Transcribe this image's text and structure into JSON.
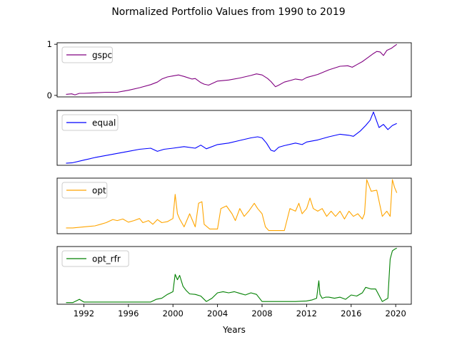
{
  "chart_data": {
    "type": "line",
    "title": "Normalized Portfolio Values from 1990 to 2019",
    "xlabel": "Years",
    "xlim": [
      1989.6,
      2021.4
    ],
    "x_ticks": [
      1992,
      1996,
      2000,
      2004,
      2008,
      2012,
      2016,
      2020
    ],
    "x_tick_labels": [
      "1992",
      "1996",
      "2000",
      "2004",
      "2008",
      "2012",
      "2016",
      "2020"
    ],
    "legend_position": "upper-left",
    "panels": [
      {
        "name": "gspc",
        "color": "#800080",
        "ylim": [
          -0.03,
          1.03
        ],
        "y_ticks": [
          0,
          1
        ],
        "y_tick_labels": [
          "0",
          "1"
        ],
        "x": [
          1990.4,
          1990.9,
          1991.2,
          1991.6,
          1992.0,
          1993.0,
          1994.0,
          1995.0,
          1995.5,
          1996.0,
          1997.0,
          1998.0,
          1998.6,
          1999.0,
          1999.5,
          2000.0,
          2000.5,
          2001.0,
          2001.7,
          2002.0,
          2002.5,
          2002.8,
          2003.2,
          2004.0,
          2005.0,
          2006.0,
          2007.0,
          2007.5,
          2008.0,
          2008.5,
          2008.8,
          2009.2,
          2009.5,
          2010.0,
          2010.5,
          2011.0,
          2011.6,
          2012.0,
          2013.0,
          2014.0,
          2015.0,
          2015.7,
          2016.1,
          2016.5,
          2017.0,
          2017.5,
          2018.0,
          2018.3,
          2018.6,
          2018.9,
          2019.2,
          2019.6,
          2020.1
        ],
        "y": [
          0.02,
          0.03,
          0.01,
          0.04,
          0.04,
          0.05,
          0.06,
          0.06,
          0.08,
          0.1,
          0.15,
          0.21,
          0.26,
          0.32,
          0.36,
          0.38,
          0.4,
          0.37,
          0.32,
          0.33,
          0.25,
          0.22,
          0.2,
          0.28,
          0.3,
          0.34,
          0.39,
          0.42,
          0.4,
          0.33,
          0.27,
          0.17,
          0.2,
          0.26,
          0.29,
          0.32,
          0.3,
          0.35,
          0.41,
          0.5,
          0.57,
          0.58,
          0.55,
          0.6,
          0.66,
          0.74,
          0.82,
          0.86,
          0.85,
          0.78,
          0.88,
          0.92,
          1.0
        ]
      },
      {
        "name": "equal",
        "color": "#0000ff",
        "ylim": [
          -0.03,
          1.03
        ],
        "y_ticks": [],
        "y_tick_labels": [],
        "x": [
          1990.4,
          1991.0,
          1992.0,
          1993.0,
          1994.0,
          1995.0,
          1996.0,
          1997.0,
          1998.0,
          1998.6,
          1999.2,
          2000.0,
          2001.0,
          2002.0,
          2002.5,
          2003.0,
          2004.0,
          2005.0,
          2006.0,
          2007.0,
          2007.6,
          2008.0,
          2008.4,
          2008.8,
          2009.1,
          2009.5,
          2010.0,
          2011.0,
          2011.6,
          2012.0,
          2013.0,
          2014.0,
          2015.0,
          2015.8,
          2016.2,
          2016.8,
          2017.3,
          2017.7,
          2018.0,
          2018.2,
          2018.5,
          2018.9,
          2019.3,
          2019.7,
          2020.1
        ],
        "y": [
          0.01,
          0.02,
          0.07,
          0.12,
          0.16,
          0.2,
          0.24,
          0.28,
          0.3,
          0.24,
          0.28,
          0.3,
          0.33,
          0.3,
          0.36,
          0.29,
          0.37,
          0.4,
          0.45,
          0.5,
          0.52,
          0.5,
          0.4,
          0.26,
          0.24,
          0.32,
          0.35,
          0.4,
          0.37,
          0.42,
          0.46,
          0.52,
          0.57,
          0.55,
          0.53,
          0.63,
          0.74,
          0.84,
          1.0,
          0.88,
          0.7,
          0.76,
          0.66,
          0.74,
          0.78
        ]
      },
      {
        "name": "opt",
        "color": "#ffa500",
        "ylim": [
          -0.03,
          1.03
        ],
        "y_ticks": [],
        "y_tick_labels": [],
        "x": [
          1990.4,
          1991.0,
          1992.0,
          1993.0,
          1993.5,
          1994.0,
          1994.6,
          1995.0,
          1995.5,
          1996.0,
          1996.5,
          1997.0,
          1997.3,
          1997.8,
          1998.2,
          1998.6,
          1999.0,
          1999.5,
          2000.0,
          2000.2,
          2000.4,
          2000.6,
          2001.0,
          2001.5,
          2002.0,
          2002.3,
          2002.6,
          2002.8,
          2003.3,
          2004.0,
          2004.3,
          2004.8,
          2005.3,
          2005.6,
          2006.0,
          2006.4,
          2006.8,
          2007.3,
          2007.6,
          2008.0,
          2008.3,
          2008.6,
          2009.0,
          2009.5,
          2010.0,
          2010.5,
          2011.0,
          2011.3,
          2011.6,
          2012.0,
          2012.3,
          2012.6,
          2013.0,
          2013.4,
          2013.8,
          2014.2,
          2014.6,
          2015.0,
          2015.4,
          2015.8,
          2016.2,
          2016.6,
          2017.0,
          2017.2,
          2017.4,
          2017.8,
          2018.3,
          2018.8,
          2019.2,
          2019.5,
          2019.7,
          2019.9,
          2020.1
        ],
        "y": [
          0.08,
          0.08,
          0.1,
          0.12,
          0.15,
          0.18,
          0.24,
          0.22,
          0.25,
          0.19,
          0.22,
          0.26,
          0.18,
          0.22,
          0.15,
          0.24,
          0.18,
          0.2,
          0.26,
          0.72,
          0.35,
          0.25,
          0.1,
          0.35,
          0.1,
          0.55,
          0.58,
          0.15,
          0.06,
          0.06,
          0.45,
          0.5,
          0.35,
          0.22,
          0.45,
          0.3,
          0.4,
          0.55,
          0.45,
          0.35,
          0.1,
          0.03,
          0.03,
          0.03,
          0.03,
          0.45,
          0.4,
          0.55,
          0.35,
          0.45,
          0.65,
          0.45,
          0.4,
          0.45,
          0.3,
          0.4,
          0.3,
          0.4,
          0.25,
          0.4,
          0.3,
          0.35,
          0.25,
          0.35,
          1.0,
          0.78,
          0.8,
          0.3,
          0.4,
          0.3,
          1.0,
          0.85,
          0.75
        ]
      },
      {
        "name": "opt_rfr",
        "color": "#008000",
        "ylim": [
          -0.03,
          1.03
        ],
        "y_ticks": [],
        "y_tick_labels": [],
        "x": [
          1990.4,
          1991.0,
          1991.6,
          1992.0,
          1993.0,
          1994.0,
          1995.0,
          1996.0,
          1997.0,
          1998.0,
          1998.5,
          1999.0,
          1999.5,
          2000.0,
          2000.2,
          2000.4,
          2000.6,
          2000.9,
          2001.2,
          2001.5,
          2002.0,
          2002.5,
          2003.0,
          2003.5,
          2004.0,
          2004.5,
          2005.0,
          2005.5,
          2006.0,
          2006.5,
          2007.0,
          2007.5,
          2008.0,
          2008.5,
          2009.0,
          2010.0,
          2011.0,
          2012.0,
          2012.5,
          2012.9,
          2013.1,
          2013.2,
          2013.4,
          2013.7,
          2014.0,
          2014.5,
          2015.0,
          2015.5,
          2016.0,
          2016.5,
          2017.0,
          2017.3,
          2017.8,
          2018.2,
          2018.8,
          2019.3,
          2019.5,
          2019.7,
          2019.9,
          2020.1
        ],
        "y": [
          0.0,
          0.0,
          0.06,
          0.01,
          0.01,
          0.01,
          0.01,
          0.01,
          0.01,
          0.01,
          0.06,
          0.08,
          0.15,
          0.2,
          0.52,
          0.42,
          0.5,
          0.3,
          0.22,
          0.16,
          0.15,
          0.12,
          0.02,
          0.08,
          0.18,
          0.2,
          0.18,
          0.2,
          0.17,
          0.14,
          0.18,
          0.15,
          0.02,
          0.02,
          0.02,
          0.02,
          0.02,
          0.03,
          0.05,
          0.08,
          0.4,
          0.15,
          0.08,
          0.1,
          0.1,
          0.08,
          0.1,
          0.06,
          0.14,
          0.12,
          0.18,
          0.28,
          0.25,
          0.25,
          0.02,
          0.08,
          0.8,
          0.95,
          0.98,
          1.0
        ]
      }
    ]
  }
}
